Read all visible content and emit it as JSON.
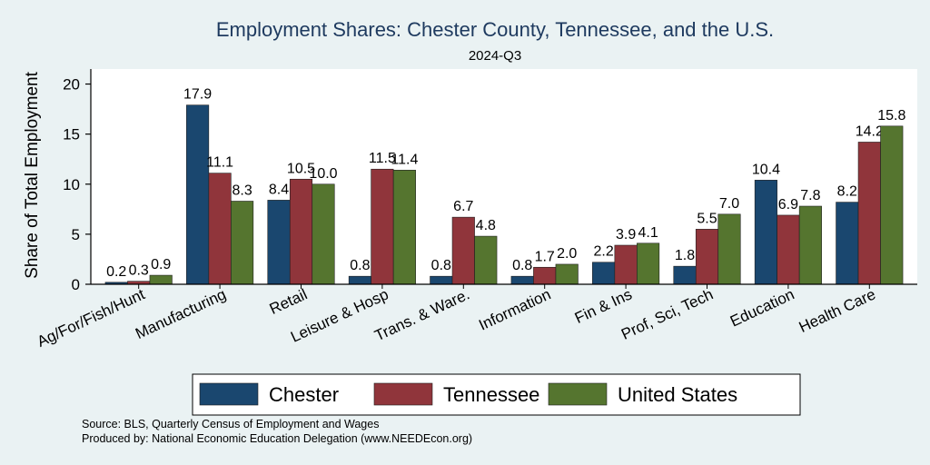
{
  "chart_data": {
    "type": "bar",
    "title": "Employment Shares: Chester County, Tennessee, and the U.S.",
    "subtitle": "2024-Q3",
    "ylabel": "Share of Total Employment",
    "xlabel": "",
    "ylim": [
      0,
      21.5
    ],
    "yticks": [
      0,
      5,
      10,
      15,
      20
    ],
    "grid": false,
    "legend_position": "bottom",
    "categories": [
      "Ag/For/Fish/Hunt",
      "Manufacturing",
      "Retail",
      "Leisure & Hosp",
      "Trans. & Ware.",
      "Information",
      "Fin & Ins",
      "Prof, Sci, Tech",
      "Education",
      "Health Care"
    ],
    "series": [
      {
        "name": "Chester",
        "color": "#1a476f",
        "values": [
          0.2,
          17.9,
          8.4,
          0.8,
          0.8,
          0.8,
          2.2,
          1.8,
          10.4,
          8.2
        ]
      },
      {
        "name": "Tennessee",
        "color": "#90353b",
        "values": [
          0.3,
          11.1,
          10.5,
          11.5,
          6.7,
          1.7,
          3.9,
          5.5,
          6.9,
          14.2
        ]
      },
      {
        "name": "United States",
        "color": "#55752f",
        "values": [
          0.9,
          8.3,
          10.0,
          11.4,
          4.8,
          2.0,
          4.1,
          7.0,
          7.8,
          15.8
        ]
      }
    ],
    "source_lines": [
      "Source: BLS, Quarterly Census of Employment and Wages",
      "Produced by: National Economic Education Delegation (www.NEEDEcon.org)"
    ]
  }
}
